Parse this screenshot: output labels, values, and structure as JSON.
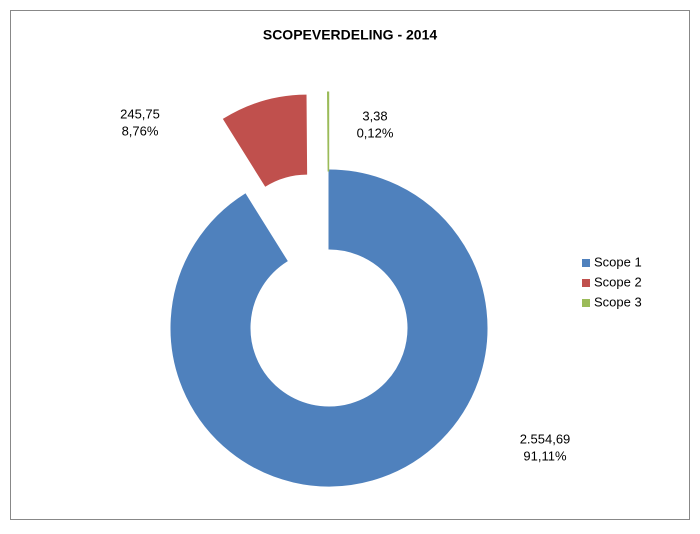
{
  "chart_data": {
    "type": "donut",
    "title": "SCOPEVERDELING - 2014",
    "categories": [
      "Scope 1",
      "Scope 2",
      "Scope 3"
    ],
    "values": [
      2554.69,
      245.75,
      3.38
    ],
    "value_labels": [
      "2.554,69",
      "245,75",
      "3,38"
    ],
    "percents": [
      91.11,
      8.76,
      0.12
    ],
    "percent_labels": [
      "91,11%",
      "8,76%",
      "0,12%"
    ],
    "colors": [
      "#4F81BD",
      "#C0504D",
      "#9BBB59"
    ],
    "legend": "right"
  }
}
